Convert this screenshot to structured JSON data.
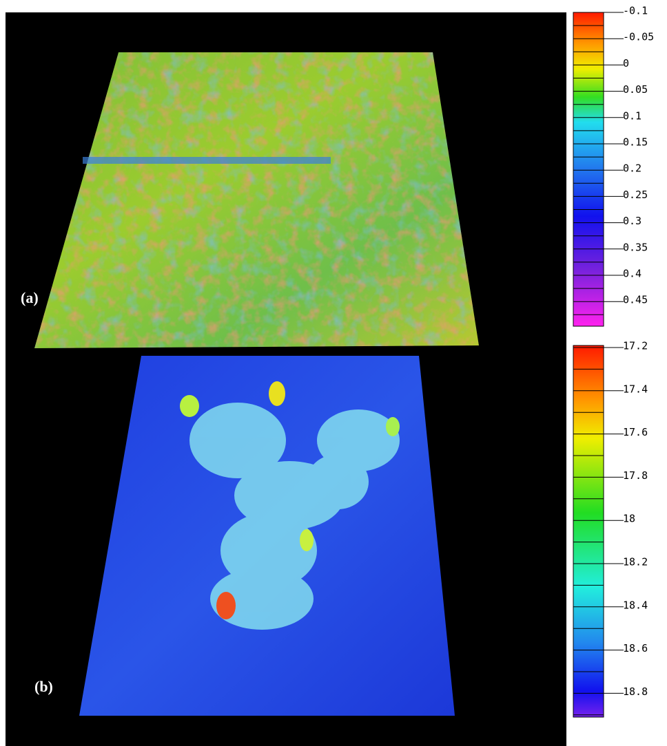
{
  "panels": [
    {
      "label": "(a)"
    },
    {
      "label": "(b)"
    }
  ],
  "colorbars": [
    {
      "ticks": [
        "-0.1",
        "-0.05",
        "0",
        "0.05",
        "0.1",
        "0.15",
        "0.2",
        "0.25",
        "0.3",
        "0.35",
        "0.4",
        "0.45"
      ]
    },
    {
      "ticks": [
        "17.2",
        "17.4",
        "17.6",
        "17.8",
        "18",
        "18.2",
        "18.4",
        "18.6",
        "18.8"
      ]
    }
  ]
}
